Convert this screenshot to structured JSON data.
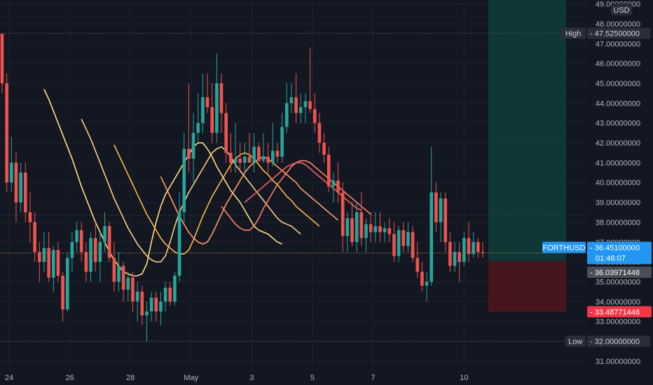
{
  "symbol_label": "FORTHUSD",
  "currency": "USD",
  "colors": {
    "background": "#131722",
    "up": "#26a69a",
    "down": "#ef5350",
    "text": "#b2b5be",
    "grid": "#1e222d",
    "profit_zone": "#0f3b3a",
    "loss_zone": "#4a161c",
    "price_tag": "#2196f3",
    "stop_tag": "#f23645",
    "entry_tag": "#4a4e59",
    "hi_lo_tag": "#2a2e39",
    "ribbon": [
      "#ffe082",
      "#ffcc80",
      "#ffb74d",
      "#ff9e6a",
      "#ff7f66",
      "#f66262"
    ]
  },
  "chart_data": {
    "type": "candlestick",
    "x_ticks": [
      {
        "label": "24",
        "pos": 1.5
      },
      {
        "label": "26",
        "pos": 14.5
      },
      {
        "label": "28",
        "pos": 27.5
      },
      {
        "label": "May",
        "pos": 40.5
      },
      {
        "label": "3",
        "pos": 53.5
      },
      {
        "label": "5",
        "pos": 66.5
      },
      {
        "label": "7",
        "pos": 79.5
      },
      {
        "label": "10",
        "pos": 99
      }
    ],
    "ylim": [
      30.5,
      49.2
    ],
    "y_ticks": [
      "31.00000000",
      "32.00000000",
      "33.00000000",
      "34.00000000",
      "35.00000000",
      "36.00000000",
      "37.00000000",
      "38.00000000",
      "39.00000000",
      "40.00000000",
      "41.00000000",
      "42.00000000",
      "43.00000000",
      "44.00000000",
      "45.00000000",
      "46.00000000",
      "47.00000000",
      "48.00000000",
      "49.00000000"
    ],
    "y_tick_values": [
      31,
      32,
      33,
      34,
      35,
      36,
      37,
      38,
      39,
      40,
      41,
      42,
      43,
      44,
      45,
      46,
      47,
      48,
      49
    ],
    "candles": [
      {
        "o": 47.5,
        "h": 47.5,
        "l": 44.5,
        "c": 45.0
      },
      {
        "o": 45.0,
        "h": 45.5,
        "l": 39.5,
        "c": 40.0
      },
      {
        "o": 40.0,
        "h": 42.3,
        "l": 39.5,
        "c": 41.0
      },
      {
        "o": 41.0,
        "h": 41.5,
        "l": 38.0,
        "c": 39.0
      },
      {
        "o": 39.0,
        "h": 41.0,
        "l": 38.5,
        "c": 40.5
      },
      {
        "o": 40.5,
        "h": 41.0,
        "l": 38.0,
        "c": 38.5
      },
      {
        "o": 38.5,
        "h": 39.5,
        "l": 37.0,
        "c": 38.0
      },
      {
        "o": 38.0,
        "h": 38.5,
        "l": 36.0,
        "c": 36.5
      },
      {
        "o": 36.5,
        "h": 37.0,
        "l": 35.0,
        "c": 36.0
      },
      {
        "o": 36.0,
        "h": 37.5,
        "l": 35.5,
        "c": 36.7
      },
      {
        "o": 36.7,
        "h": 37.5,
        "l": 35.0,
        "c": 35.2
      },
      {
        "o": 35.2,
        "h": 36.8,
        "l": 34.5,
        "c": 36.6
      },
      {
        "o": 36.6,
        "h": 37.0,
        "l": 35.0,
        "c": 35.3
      },
      {
        "o": 35.3,
        "h": 35.5,
        "l": 33.0,
        "c": 33.6
      },
      {
        "o": 33.6,
        "h": 36.5,
        "l": 33.5,
        "c": 36.2
      },
      {
        "o": 36.2,
        "h": 37.5,
        "l": 35.5,
        "c": 37.0
      },
      {
        "o": 37.0,
        "h": 38.0,
        "l": 36.5,
        "c": 37.6
      },
      {
        "o": 37.6,
        "h": 38.0,
        "l": 36.0,
        "c": 36.5
      },
      {
        "o": 36.5,
        "h": 37.0,
        "l": 35.0,
        "c": 35.5
      },
      {
        "o": 35.5,
        "h": 37.5,
        "l": 35.0,
        "c": 37.2
      },
      {
        "o": 37.2,
        "h": 38.0,
        "l": 35.5,
        "c": 36.0
      },
      {
        "o": 36.0,
        "h": 37.5,
        "l": 35.0,
        "c": 37.0
      },
      {
        "o": 37.0,
        "h": 38.5,
        "l": 36.5,
        "c": 37.8
      },
      {
        "o": 37.8,
        "h": 38.0,
        "l": 36.0,
        "c": 36.2
      },
      {
        "o": 36.2,
        "h": 37.0,
        "l": 34.5,
        "c": 35.0
      },
      {
        "o": 35.0,
        "h": 36.5,
        "l": 34.5,
        "c": 35.8
      },
      {
        "o": 35.8,
        "h": 36.0,
        "l": 34.0,
        "c": 34.6
      },
      {
        "o": 34.6,
        "h": 35.5,
        "l": 34.0,
        "c": 35.2
      },
      {
        "o": 35.2,
        "h": 35.5,
        "l": 33.5,
        "c": 34.0
      },
      {
        "o": 34.0,
        "h": 35.0,
        "l": 33.0,
        "c": 34.5
      },
      {
        "o": 34.5,
        "h": 34.8,
        "l": 32.8,
        "c": 33.3
      },
      {
        "o": 33.3,
        "h": 34.0,
        "l": 32.0,
        "c": 33.5
      },
      {
        "o": 33.5,
        "h": 34.5,
        "l": 33.0,
        "c": 34.2
      },
      {
        "o": 34.2,
        "h": 34.5,
        "l": 33.0,
        "c": 33.5
      },
      {
        "o": 33.5,
        "h": 34.5,
        "l": 32.8,
        "c": 34.0
      },
      {
        "o": 34.0,
        "h": 35.0,
        "l": 33.5,
        "c": 34.7
      },
      {
        "o": 34.7,
        "h": 35.0,
        "l": 33.8,
        "c": 34.0
      },
      {
        "o": 34.0,
        "h": 35.5,
        "l": 33.8,
        "c": 35.3
      },
      {
        "o": 35.3,
        "h": 39.5,
        "l": 35.0,
        "c": 38.5
      },
      {
        "o": 38.5,
        "h": 42.5,
        "l": 38.0,
        "c": 41.7
      },
      {
        "o": 41.7,
        "h": 45.0,
        "l": 40.5,
        "c": 41.2
      },
      {
        "o": 41.2,
        "h": 43.5,
        "l": 40.0,
        "c": 42.5
      },
      {
        "o": 42.5,
        "h": 44.5,
        "l": 42.0,
        "c": 43.0
      },
      {
        "o": 43.0,
        "h": 45.5,
        "l": 42.5,
        "c": 44.3
      },
      {
        "o": 44.3,
        "h": 45.5,
        "l": 43.5,
        "c": 43.8
      },
      {
        "o": 43.8,
        "h": 45.0,
        "l": 42.0,
        "c": 42.5
      },
      {
        "o": 42.5,
        "h": 46.5,
        "l": 42.0,
        "c": 45.0
      },
      {
        "o": 45.0,
        "h": 45.5,
        "l": 42.5,
        "c": 43.5
      },
      {
        "o": 43.5,
        "h": 44.0,
        "l": 41.0,
        "c": 41.5
      },
      {
        "o": 41.5,
        "h": 42.5,
        "l": 40.5,
        "c": 41.0
      },
      {
        "o": 41.0,
        "h": 43.0,
        "l": 40.5,
        "c": 41.2
      },
      {
        "o": 41.2,
        "h": 42.0,
        "l": 40.5,
        "c": 41.0
      },
      {
        "o": 41.0,
        "h": 42.0,
        "l": 40.5,
        "c": 41.3
      },
      {
        "o": 41.3,
        "h": 42.5,
        "l": 41.0,
        "c": 41.0
      },
      {
        "o": 41.0,
        "h": 42.5,
        "l": 40.5,
        "c": 41.8
      },
      {
        "o": 41.8,
        "h": 42.0,
        "l": 41.0,
        "c": 41.1
      },
      {
        "o": 41.1,
        "h": 42.5,
        "l": 41.0,
        "c": 41.3
      },
      {
        "o": 41.3,
        "h": 42.0,
        "l": 40.5,
        "c": 41.0
      },
      {
        "o": 41.0,
        "h": 43.0,
        "l": 40.8,
        "c": 41.6
      },
      {
        "o": 41.6,
        "h": 42.0,
        "l": 41.0,
        "c": 41.3
      },
      {
        "o": 41.3,
        "h": 43.5,
        "l": 41.0,
        "c": 42.8
      },
      {
        "o": 42.8,
        "h": 45.0,
        "l": 42.5,
        "c": 44.0
      },
      {
        "o": 44.0,
        "h": 45.0,
        "l": 43.5,
        "c": 44.3
      },
      {
        "o": 44.3,
        "h": 45.5,
        "l": 43.0,
        "c": 43.5
      },
      {
        "o": 43.5,
        "h": 44.5,
        "l": 43.0,
        "c": 43.8
      },
      {
        "o": 43.8,
        "h": 44.5,
        "l": 43.0,
        "c": 44.1
      },
      {
        "o": 44.1,
        "h": 46.8,
        "l": 43.5,
        "c": 43.7
      },
      {
        "o": 43.7,
        "h": 44.5,
        "l": 42.5,
        "c": 43.0
      },
      {
        "o": 43.0,
        "h": 43.5,
        "l": 41.5,
        "c": 42.0
      },
      {
        "o": 42.0,
        "h": 42.5,
        "l": 41.0,
        "c": 41.4
      },
      {
        "o": 41.4,
        "h": 41.8,
        "l": 39.5,
        "c": 39.8
      },
      {
        "o": 39.8,
        "h": 40.5,
        "l": 39.0,
        "c": 40.1
      },
      {
        "o": 40.1,
        "h": 41.0,
        "l": 39.0,
        "c": 39.5
      },
      {
        "o": 39.5,
        "h": 40.0,
        "l": 36.5,
        "c": 37.3
      },
      {
        "o": 37.3,
        "h": 38.5,
        "l": 36.5,
        "c": 38.2
      },
      {
        "o": 38.2,
        "h": 39.0,
        "l": 36.8,
        "c": 37.0
      },
      {
        "o": 37.0,
        "h": 39.0,
        "l": 36.5,
        "c": 38.5
      },
      {
        "o": 38.5,
        "h": 39.5,
        "l": 36.8,
        "c": 37.2
      },
      {
        "o": 37.2,
        "h": 38.2,
        "l": 36.5,
        "c": 37.9
      },
      {
        "o": 37.9,
        "h": 38.5,
        "l": 37.0,
        "c": 37.5
      },
      {
        "o": 37.5,
        "h": 38.5,
        "l": 37.0,
        "c": 37.8
      },
      {
        "o": 37.8,
        "h": 38.5,
        "l": 37.0,
        "c": 37.5
      },
      {
        "o": 37.5,
        "h": 38.0,
        "l": 37.0,
        "c": 37.7
      },
      {
        "o": 37.7,
        "h": 38.2,
        "l": 37.0,
        "c": 37.4
      },
      {
        "o": 37.4,
        "h": 38.0,
        "l": 36.0,
        "c": 36.3
      },
      {
        "o": 36.3,
        "h": 37.8,
        "l": 36.0,
        "c": 37.6
      },
      {
        "o": 37.6,
        "h": 38.0,
        "l": 36.5,
        "c": 36.8
      },
      {
        "o": 36.8,
        "h": 38.0,
        "l": 36.5,
        "c": 37.5
      },
      {
        "o": 37.5,
        "h": 37.8,
        "l": 36.0,
        "c": 36.2
      },
      {
        "o": 36.2,
        "h": 37.0,
        "l": 35.2,
        "c": 35.5
      },
      {
        "o": 35.5,
        "h": 36.0,
        "l": 34.5,
        "c": 34.8
      },
      {
        "o": 34.8,
        "h": 35.5,
        "l": 34.0,
        "c": 35.0
      },
      {
        "o": 35.0,
        "h": 41.8,
        "l": 34.8,
        "c": 39.5
      },
      {
        "o": 39.5,
        "h": 40.0,
        "l": 37.5,
        "c": 38.0
      },
      {
        "o": 38.0,
        "h": 39.5,
        "l": 37.0,
        "c": 39.2
      },
      {
        "o": 39.2,
        "h": 39.5,
        "l": 36.5,
        "c": 37.0
      },
      {
        "o": 37.0,
        "h": 37.5,
        "l": 35.5,
        "c": 35.8
      },
      {
        "o": 35.8,
        "h": 37.0,
        "l": 35.5,
        "c": 36.5
      },
      {
        "o": 36.5,
        "h": 37.0,
        "l": 35.0,
        "c": 36.0
      },
      {
        "o": 36.0,
        "h": 37.5,
        "l": 35.8,
        "c": 37.2
      },
      {
        "o": 37.2,
        "h": 38.0,
        "l": 36.0,
        "c": 36.4
      },
      {
        "o": 36.4,
        "h": 37.5,
        "l": 36.2,
        "c": 37.0
      },
      {
        "o": 37.0,
        "h": 37.2,
        "l": 36.2,
        "c": 36.5
      },
      {
        "o": 36.5,
        "h": 37.0,
        "l": 36.2,
        "c": 36.451
      }
    ],
    "ribbons": [
      {
        "start": 9,
        "points": [
          44.7,
          44.2,
          43.6,
          43.0,
          42.4,
          41.8,
          41.2,
          40.5,
          39.8,
          39.2,
          38.6,
          38.0,
          37.5,
          37.0,
          36.5,
          36.1,
          35.8,
          35.5,
          35.4,
          35.3,
          35.3,
          35.4,
          35.9,
          37.0,
          38.0,
          38.8,
          39.4,
          39.8,
          40.2,
          40.6,
          41.0,
          41.4,
          41.8,
          42.0,
          42.0,
          41.7,
          41.3,
          40.8,
          40.4,
          40.0,
          39.6,
          39.3,
          39.0,
          38.6,
          38.2,
          37.8,
          37.6,
          37.5,
          37.4,
          37.2,
          37.0,
          36.9
        ]
      },
      {
        "start": 17,
        "points": [
          43.2,
          42.7,
          42.2,
          41.6,
          41.0,
          40.4,
          39.8,
          39.2,
          38.7,
          38.2,
          37.7,
          37.3,
          36.9,
          36.6,
          36.3,
          36.1,
          36.0,
          36.0,
          36.3,
          37.0,
          37.8,
          38.5,
          39.0,
          39.5,
          39.9,
          40.3,
          40.7,
          41.1,
          41.5,
          41.7,
          41.8,
          41.6,
          41.3,
          40.9,
          40.6,
          40.3,
          40.0,
          39.7,
          39.4,
          39.1,
          38.8,
          38.5,
          38.2,
          38.0,
          37.9,
          37.8,
          37.6,
          37.4
        ]
      },
      {
        "start": 24,
        "points": [
          41.9,
          41.4,
          40.9,
          40.4,
          39.9,
          39.4,
          38.9,
          38.4,
          38.0,
          37.6,
          37.2,
          36.9,
          36.7,
          36.5,
          36.4,
          36.4,
          36.6,
          37.1,
          37.7,
          38.3,
          38.8,
          39.3,
          39.7,
          40.1,
          40.5,
          40.9,
          41.2,
          41.4,
          41.5,
          41.4,
          41.2,
          40.9,
          40.6,
          40.4,
          40.1,
          39.9,
          39.6,
          39.3,
          39.1,
          38.8,
          38.6,
          38.4,
          38.2,
          38.0,
          37.8
        ]
      },
      {
        "start": 34,
        "points": [
          40.3,
          39.8,
          39.3,
          38.8,
          38.3,
          37.9,
          37.5,
          37.2,
          37.0,
          36.9,
          37.0,
          37.4,
          37.9,
          38.4,
          38.9,
          39.3,
          39.7,
          40.1,
          40.5,
          40.8,
          41.0,
          41.2,
          41.3,
          41.2,
          41.0,
          40.8,
          40.6,
          40.4,
          40.2,
          40.0,
          39.7,
          39.5,
          39.3,
          39.1,
          38.9,
          38.7,
          38.5,
          38.3,
          38.1
        ]
      },
      {
        "start": 47,
        "points": [
          38.8,
          38.5,
          38.2,
          37.9,
          37.7,
          37.6,
          37.6,
          37.8,
          38.2,
          38.7,
          39.1,
          39.5,
          39.9,
          40.2,
          40.5,
          40.8,
          41.0,
          41.1,
          41.1,
          41.0,
          40.8,
          40.6,
          40.4,
          40.2,
          40.0,
          39.8,
          39.6,
          39.4,
          39.2,
          39.0,
          38.8,
          38.6,
          38.4
        ]
      },
      {
        "start": 52,
        "points": [
          39.0,
          39.2,
          39.4,
          39.6,
          39.8,
          40.0,
          40.2,
          40.4,
          40.6,
          40.8,
          40.9,
          41.0,
          41.0,
          40.9,
          40.7,
          40.5,
          40.3,
          40.1,
          39.9,
          39.7,
          39.5,
          39.3,
          39.1,
          38.9,
          38.7,
          38.6
        ]
      }
    ],
    "position": {
      "entry": 36.03971448,
      "target": 47.525,
      "stop": 33.48771448,
      "top": 49.2
    },
    "labels": {
      "high_label": "High",
      "high_value": "47.52500000",
      "low_label": "Low",
      "low_value": "32.00000000",
      "last_price": "36.45100000",
      "last_price_value": 36.451,
      "countdown": "01:46:07",
      "entry_value": "36.03971448",
      "stop_value": "33.48771448",
      "low_line_value": 32.0,
      "high_line_value": 47.525
    }
  }
}
